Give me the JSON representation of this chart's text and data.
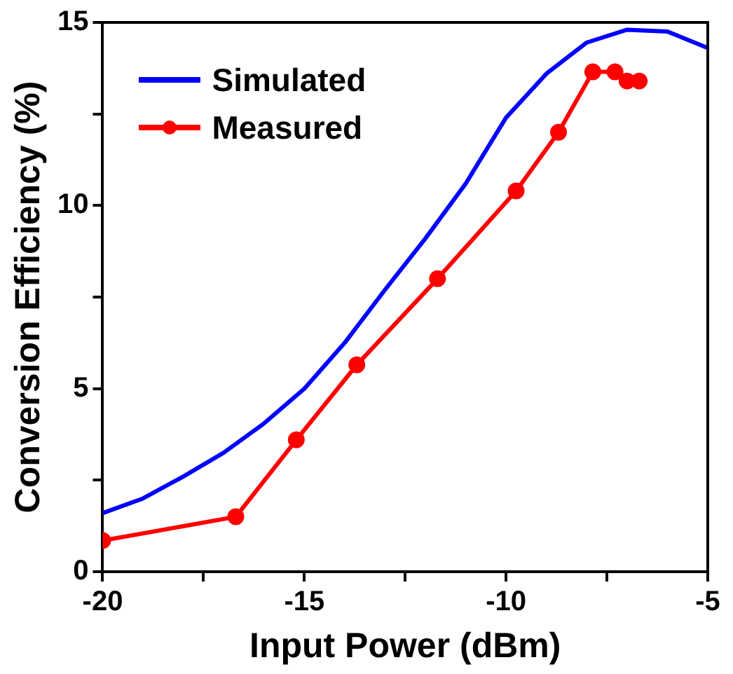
{
  "chart_data": {
    "type": "line",
    "xlabel": "Input Power (dBm)",
    "ylabel": "Conversion Efficiency (%)",
    "xlim": [
      -20,
      -5
    ],
    "xticks": [
      -20,
      {
        "value": -17.5,
        "label": null
      },
      -15,
      {
        "value": -12.5,
        "label": null
      },
      -10,
      {
        "value": -7.5,
        "label": null
      },
      -5
    ],
    "ylim": [
      0,
      15
    ],
    "yticks": [
      0,
      {
        "value": 2.5,
        "label": null
      },
      5,
      {
        "value": 7.5,
        "label": null
      },
      10,
      {
        "value": 12.5,
        "label": null
      },
      15
    ],
    "grid": false,
    "legend": "top left",
    "series": [
      {
        "name": "Simulated",
        "color": "#0000ff",
        "marker": "none",
        "x": [
          -20,
          -19,
          -18,
          -17,
          -16,
          -15,
          -14,
          -13,
          -12,
          -11,
          -10,
          -9,
          -8,
          -7,
          -6,
          -5
        ],
        "values": [
          1.6,
          2.0,
          2.6,
          3.25,
          4.05,
          5.0,
          6.25,
          7.7,
          9.1,
          10.6,
          12.4,
          13.6,
          14.45,
          14.8,
          14.75,
          14.3
        ]
      },
      {
        "name": "Measured",
        "color": "#ff0000",
        "marker": "circle",
        "x": [
          -20,
          -16.7,
          -15.2,
          -13.7,
          -11.7,
          -9.75,
          -8.7,
          -7.85,
          -7.3,
          -7.0,
          -6.7
        ],
        "values": [
          0.85,
          1.5,
          3.6,
          5.65,
          8.0,
          10.4,
          12.0,
          13.65,
          13.65,
          13.4,
          13.4
        ]
      }
    ]
  }
}
